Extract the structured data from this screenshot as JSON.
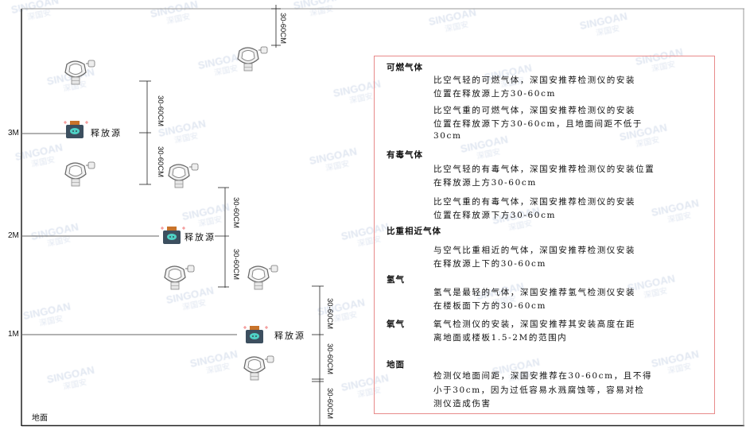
{
  "watermark": {
    "brand": "SINGOAN",
    "cn": "深国安"
  },
  "levels": {
    "l3": "3M",
    "l2": "2M",
    "l1": "1M",
    "ground": "地面"
  },
  "source_label": "释放源",
  "dim_label": "30-60CM",
  "legend": {
    "combustible": {
      "title": "可燃气体",
      "light": [
        "比空气轻的可燃气体，深国安推荐检测仪的安装",
        "位置在释放源上方30-60cm"
      ],
      "heavy": [
        "比空气重的可燃气体，深国安推荐检测仪的安装",
        "位置在释放源下方30-60cm，且地面间距不低于",
        "30cm"
      ]
    },
    "toxic": {
      "title": "有毒气体",
      "light": [
        "比空气轻的有毒气体，深国安推荐检测仪的安装位置",
        "在释放源上方30-60cm"
      ],
      "heavy": [
        "比空气重的有毒气体，深国安推荐检测仪的安装",
        "位置在释放源下方30-60cm"
      ]
    },
    "similar": {
      "title": "比重相近气体",
      "text": [
        "与空气比重相近的气体，深国安推荐检测仪安装",
        "在释放源上下的30-60cm"
      ]
    },
    "hydrogen": {
      "title": "氢气",
      "text": [
        "氢气是最轻的气体，深国安推荐氢气检测仪安装",
        "在楼板面下方的30-60cm"
      ]
    },
    "oxygen": {
      "title": "氧气",
      "text": [
        "氧气检测仪的安装，深国安推荐其安装高度在距",
        "离地面或楼板1.5-2M的范围内"
      ]
    },
    "ground": {
      "title": "地面",
      "text": [
        "检测仪地面间距，深国安推荐在30-60cm，且不得",
        "小于30cm，因为过低容易水溅腐蚀等，容易对检",
        "测仪造成伤害"
      ]
    }
  },
  "colors": {
    "frame": "#e88a8a",
    "source_body": "#3c4f5f",
    "source_cap": "#c8732a",
    "source_face": "#4fd1c5"
  }
}
